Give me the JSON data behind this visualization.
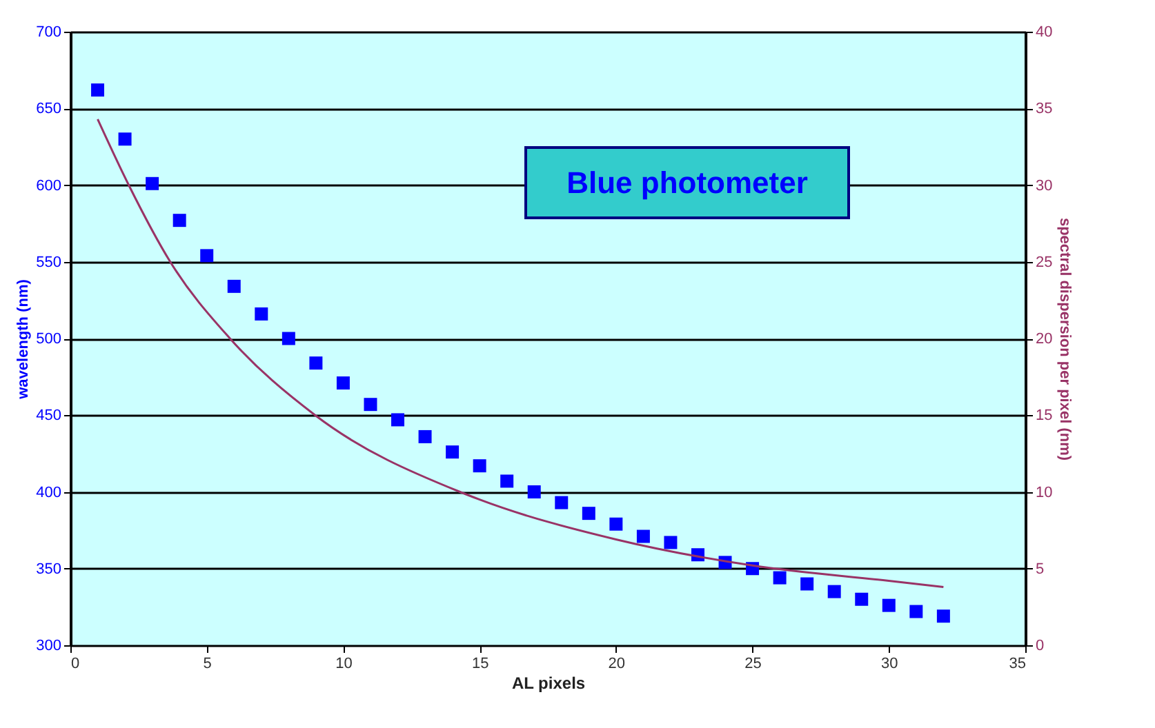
{
  "chart_data": {
    "type": "scatter",
    "xlabel": "AL pixels",
    "ylabel": "wavelength (nm)",
    "y2label": "spectral dispersion per pixel (nm)",
    "annotations": [
      "Blue photometer"
    ],
    "x": [
      1,
      2,
      3,
      4,
      5,
      6,
      7,
      8,
      9,
      10,
      11,
      12,
      13,
      14,
      15,
      16,
      17,
      18,
      19,
      20,
      21,
      22,
      23,
      24,
      25,
      26,
      27,
      28,
      29,
      30,
      31,
      32
    ],
    "series": [
      {
        "marker": "square",
        "color": "#0000ff",
        "values": [
          662,
          630,
          601,
          577,
          554,
          534,
          516,
          500,
          484,
          471,
          457,
          447,
          436,
          426,
          417,
          407,
          400,
          393,
          386,
          379,
          371,
          367,
          359,
          354,
          350,
          344,
          340,
          335,
          330,
          326,
          322,
          319
        ]
      },
      {
        "type": "line",
        "axis": "y2",
        "color": "#993366",
        "x": [
          1,
          2.14,
          3.66,
          5.85,
          8.97,
          14.28,
          15,
          20,
          25,
          30,
          32
        ],
        "values": [
          34.3,
          30,
          25,
          20,
          15,
          10,
          9.5,
          6.9,
          5.2,
          4.2,
          3.8
        ]
      }
    ],
    "xlim": [
      0,
      35
    ],
    "xticks": [
      0,
      5,
      10,
      15,
      20,
      25,
      30,
      35
    ],
    "ylim": [
      300,
      700
    ],
    "yticks": [
      300,
      350,
      400,
      450,
      500,
      550,
      600,
      650,
      700
    ],
    "y2lim": [
      0,
      40
    ],
    "y2ticks": [
      0,
      5,
      10,
      15,
      20,
      25,
      30,
      35,
      40
    ],
    "grid": "y",
    "line_style": "solid"
  }
}
